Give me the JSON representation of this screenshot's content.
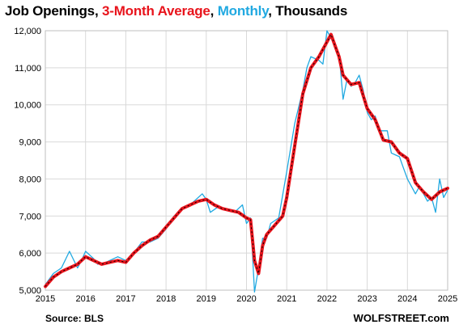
{
  "title_parts": [
    {
      "text": "Job Openings, ",
      "color": "#000000"
    },
    {
      "text": "3-Month Average",
      "color": "#e8141c"
    },
    {
      "text": ", ",
      "color": "#000000"
    },
    {
      "text": "Monthly",
      "color": "#21a9e1"
    },
    {
      "text": ", Thousands",
      "color": "#000000"
    }
  ],
  "source": "Source: BLS",
  "brand": "WOLFSTREET.com",
  "colors": {
    "average_line": "#e8141c",
    "average_shadow": "#000000",
    "monthly_line": "#21a9e1",
    "grid": "#d9d9d9"
  },
  "chart_data": {
    "type": "line",
    "title": "Job Openings, 3-Month Average, Monthly, Thousands",
    "ylim": [
      5000,
      12000
    ],
    "yticks": [
      5000,
      6000,
      7000,
      8000,
      9000,
      10000,
      11000,
      12000
    ],
    "ytick_labels": [
      "5,000",
      "6,000",
      "7,000",
      "8,000",
      "9,000",
      "10,000",
      "11,000",
      "12,000"
    ],
    "xlim": [
      2015,
      2025
    ],
    "xticks": [
      2015,
      2016,
      2017,
      2018,
      2019,
      2020,
      2021,
      2022,
      2023,
      2024,
      2025
    ],
    "xtick_labels": [
      "2015",
      "2016",
      "2017",
      "2018",
      "2019",
      "2020",
      "2021",
      "2022",
      "2023",
      "2024",
      "2025"
    ],
    "grid": true,
    "series": [
      {
        "name": "Monthly",
        "color": "#21a9e1",
        "x": [
          2015.0,
          2015.2,
          2015.4,
          2015.6,
          2015.8,
          2015.9,
          2016.0,
          2016.2,
          2016.3,
          2016.5,
          2016.8,
          2017.0,
          2017.2,
          2017.4,
          2017.6,
          2017.8,
          2018.0,
          2018.2,
          2018.4,
          2018.6,
          2018.9,
          2019.0,
          2019.1,
          2019.3,
          2019.5,
          2019.7,
          2019.9,
          2020.0,
          2020.1,
          2020.2,
          2020.3,
          2020.4,
          2020.5,
          2020.6,
          2020.8,
          2021.0,
          2021.2,
          2021.4,
          2021.5,
          2021.6,
          2021.8,
          2021.9,
          2022.0,
          2022.1,
          2022.2,
          2022.3,
          2022.4,
          2022.5,
          2022.6,
          2022.7,
          2022.8,
          2022.9,
          2023.0,
          2023.1,
          2023.2,
          2023.3,
          2023.5,
          2023.6,
          2023.7,
          2023.8,
          2023.9,
          2024.0,
          2024.2,
          2024.3,
          2024.5,
          2024.6,
          2024.7,
          2024.8,
          2024.9,
          2025.0
        ],
        "values": [
          5150,
          5450,
          5600,
          6050,
          5600,
          5800,
          6050,
          5850,
          5700,
          5750,
          5900,
          5800,
          6000,
          6300,
          6300,
          6400,
          6650,
          7000,
          7200,
          7300,
          7600,
          7450,
          7100,
          7250,
          7200,
          7100,
          7300,
          6800,
          6950,
          4950,
          5600,
          6400,
          6400,
          6800,
          6950,
          8200,
          9500,
          10400,
          11000,
          11300,
          11200,
          11100,
          12000,
          11800,
          11600,
          11400,
          10150,
          10700,
          10500,
          10600,
          10800,
          10400,
          9800,
          9600,
          9700,
          9300,
          9300,
          8700,
          8650,
          8600,
          8300,
          8000,
          7600,
          7800,
          7400,
          7500,
          7100,
          8000,
          7500,
          7700
        ]
      },
      {
        "name": "3-Month Average",
        "color": "#e8141c",
        "x": [
          2015.0,
          2015.2,
          2015.4,
          2015.6,
          2015.8,
          2016.0,
          2016.2,
          2016.4,
          2016.6,
          2016.8,
          2017.0,
          2017.2,
          2017.4,
          2017.6,
          2017.8,
          2018.0,
          2018.2,
          2018.4,
          2018.6,
          2018.8,
          2019.0,
          2019.2,
          2019.4,
          2019.6,
          2019.8,
          2020.0,
          2020.1,
          2020.2,
          2020.3,
          2020.4,
          2020.5,
          2020.7,
          2020.9,
          2021.0,
          2021.2,
          2021.4,
          2021.6,
          2021.8,
          2022.0,
          2022.1,
          2022.2,
          2022.3,
          2022.4,
          2022.6,
          2022.8,
          2023.0,
          2023.2,
          2023.4,
          2023.6,
          2023.8,
          2024.0,
          2024.2,
          2024.4,
          2024.6,
          2024.8,
          2025.0
        ],
        "values": [
          5100,
          5350,
          5500,
          5600,
          5700,
          5900,
          5800,
          5700,
          5750,
          5800,
          5750,
          6000,
          6200,
          6350,
          6450,
          6700,
          6950,
          7200,
          7300,
          7400,
          7450,
          7300,
          7200,
          7150,
          7100,
          6950,
          6900,
          5800,
          5450,
          6200,
          6500,
          6750,
          7000,
          7500,
          8900,
          10300,
          11000,
          11300,
          11700,
          11900,
          11600,
          11300,
          10800,
          10550,
          10600,
          9900,
          9600,
          9050,
          9000,
          8700,
          8550,
          7900,
          7650,
          7450,
          7650,
          7750
        ]
      }
    ]
  }
}
